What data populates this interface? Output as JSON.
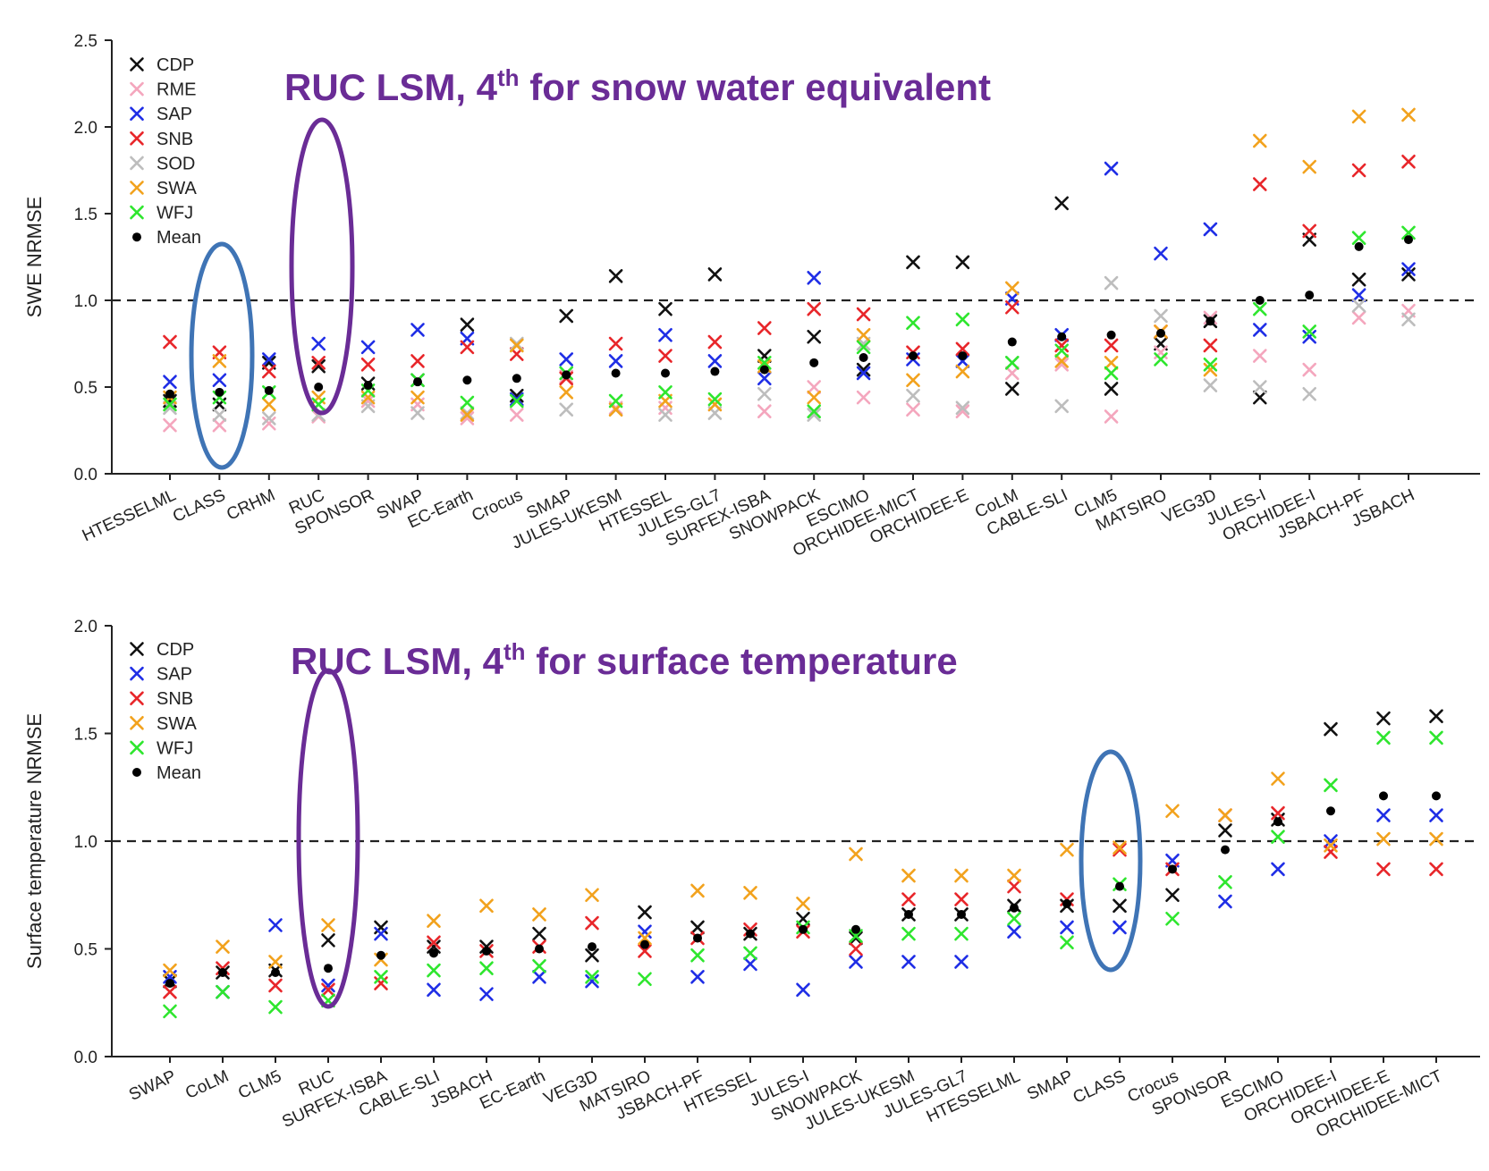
{
  "colors": {
    "CDP": "#111111",
    "RME": "#f4a6bd",
    "SAP": "#1f2ee6",
    "SNB": "#e8262a",
    "SOD": "#bdbdbd",
    "SWA": "#f2a21d",
    "WFJ": "#2ee62e",
    "Mean": "#000000",
    "annotation": "#6a2c96",
    "ruc_ellipse": "#6a2c96",
    "class_ellipse": "#3f74b5"
  },
  "chart_data": [
    {
      "type": "scatter",
      "ylabel": "SWE NRMSE",
      "ylim": [
        0,
        2.5
      ],
      "yticks": [
        "0.0",
        "0.5",
        "1.0",
        "1.5",
        "2.0",
        "2.5"
      ],
      "reference_line": 1.0,
      "annotation": {
        "pre": "RUC LSM, 4",
        "sup": "th",
        "post": " for snow water equivalent"
      },
      "legend": [
        "CDP",
        "RME",
        "SAP",
        "SNB",
        "SOD",
        "SWA",
        "WFJ",
        "Mean"
      ],
      "legend_position": "top-left",
      "highlight": {
        "ruc": "RUC",
        "class": "CLASS"
      },
      "categories": [
        "HTESSELML",
        "CLASS",
        "CRHM",
        "RUC",
        "SPONSOR",
        "SWAP",
        "EC-Earth",
        "Crocus",
        "SMAP",
        "JULES-UKESM",
        "HTESSEL",
        "JULES-GL7",
        "SURFEX-ISBA",
        "SNOWPACK",
        "ESCIMO",
        "ORCHIDEE-MICT",
        "ORCHIDEE-E",
        "CoLM",
        "CABLE-SLI",
        "CLM5",
        "MATSIRO",
        "VEG3D",
        "JULES-I",
        "ORCHIDEE-I",
        "JSBACH-PF",
        "JSBACH"
      ],
      "series": [
        {
          "name": "CDP",
          "values": [
            0.42,
            0.4,
            0.64,
            0.62,
            0.52,
            0.54,
            0.86,
            0.45,
            0.91,
            1.14,
            0.95,
            1.15,
            0.68,
            0.79,
            0.6,
            1.22,
            1.22,
            0.49,
            1.56,
            0.49,
            0.75,
            0.88,
            0.44,
            1.35,
            1.12,
            1.15
          ]
        },
        {
          "name": "RME",
          "values": [
            0.28,
            0.28,
            0.29,
            0.33,
            0.42,
            0.4,
            0.32,
            0.34,
            0.56,
            0.38,
            0.38,
            0.4,
            0.36,
            0.5,
            0.44,
            0.37,
            0.36,
            0.58,
            0.63,
            0.33,
            0.7,
            0.9,
            0.68,
            0.6,
            0.9,
            0.94
          ]
        },
        {
          "name": "SAP",
          "values": [
            0.53,
            0.54,
            0.66,
            0.75,
            0.73,
            0.83,
            0.78,
            0.43,
            0.66,
            0.65,
            0.8,
            0.65,
            0.55,
            1.13,
            0.58,
            0.66,
            0.65,
            1.01,
            0.8,
            1.76,
            1.27,
            1.41,
            0.83,
            0.79,
            1.03,
            1.18
          ]
        },
        {
          "name": "SNB",
          "values": [
            0.76,
            0.7,
            0.59,
            0.64,
            0.63,
            0.65,
            0.73,
            0.69,
            0.55,
            0.75,
            0.68,
            0.76,
            0.84,
            0.95,
            0.92,
            0.7,
            0.72,
            0.96,
            0.74,
            0.74,
            0.82,
            0.74,
            1.67,
            1.4,
            1.75,
            1.8
          ]
        },
        {
          "name": "SOD",
          "values": [
            0.38,
            0.34,
            0.32,
            0.34,
            0.39,
            0.35,
            0.35,
            0.75,
            0.37,
            0.37,
            0.34,
            0.35,
            0.46,
            0.34,
            0.75,
            0.45,
            0.38,
            0.64,
            0.39,
            1.1,
            0.91,
            0.51,
            0.5,
            0.46,
            0.97,
            0.89
          ]
        },
        {
          "name": "SWA",
          "values": [
            0.44,
            0.65,
            0.4,
            0.44,
            0.44,
            0.44,
            0.34,
            0.74,
            0.47,
            0.37,
            0.42,
            0.4,
            0.62,
            0.44,
            0.8,
            0.54,
            0.59,
            1.07,
            0.65,
            0.64,
            0.82,
            0.6,
            1.92,
            1.77,
            2.06,
            2.07
          ]
        },
        {
          "name": "WFJ",
          "values": [
            0.4,
            0.44,
            0.47,
            0.4,
            0.48,
            0.54,
            0.41,
            0.42,
            0.58,
            0.42,
            0.47,
            0.43,
            0.64,
            0.36,
            0.73,
            0.87,
            0.89,
            0.64,
            0.71,
            0.58,
            0.66,
            0.63,
            0.95,
            0.82,
            1.36,
            1.39
          ]
        },
        {
          "name": "Mean",
          "values": [
            0.46,
            0.47,
            0.48,
            0.5,
            0.51,
            0.53,
            0.54,
            0.55,
            0.57,
            0.58,
            0.58,
            0.59,
            0.6,
            0.64,
            0.67,
            0.68,
            0.68,
            0.76,
            0.79,
            0.8,
            0.81,
            0.88,
            1.0,
            1.03,
            1.31,
            1.35
          ]
        }
      ]
    },
    {
      "type": "scatter",
      "ylabel": "Surface temperature NRMSE",
      "ylim": [
        0,
        2.0
      ],
      "yticks": [
        "0.0",
        "0.5",
        "1.0",
        "1.5",
        "2.0"
      ],
      "reference_line": 1.0,
      "annotation": {
        "pre": "RUC LSM, 4",
        "sup": "th",
        "post": " for surface temperature"
      },
      "legend": [
        "CDP",
        "SAP",
        "SNB",
        "SWA",
        "WFJ",
        "Mean"
      ],
      "legend_position": "top-left",
      "highlight": {
        "ruc": "RUC",
        "class": "CLASS"
      },
      "categories": [
        "SWAP",
        "CoLM",
        "CLM5",
        "RUC",
        "SURFEX-ISBA",
        "CABLE-SLI",
        "JSBACH",
        "EC-Earth",
        "VEG3D",
        "MATSIRO",
        "JSBACH-PF",
        "HTESSEL",
        "JULES-I",
        "SNOWPACK",
        "JULES-UKESM",
        "JULES-GL7",
        "HTESSELML",
        "SMAP",
        "CLASS",
        "Crocus",
        "SPONSOR",
        "ESCIMO",
        "ORCHIDEE-I",
        "ORCHIDEE-E",
        "ORCHIDEE-MICT"
      ],
      "series": [
        {
          "name": "CDP",
          "values": [
            0.35,
            0.39,
            0.4,
            0.54,
            0.6,
            0.51,
            0.51,
            0.57,
            0.47,
            0.67,
            0.6,
            0.57,
            0.64,
            0.55,
            0.66,
            0.66,
            0.7,
            0.7,
            0.7,
            0.75,
            1.05,
            1.1,
            1.52,
            1.57,
            1.58
          ]
        },
        {
          "name": "SAP",
          "values": [
            0.37,
            0.3,
            0.61,
            0.33,
            0.57,
            0.31,
            0.29,
            0.37,
            0.35,
            0.58,
            0.37,
            0.43,
            0.31,
            0.44,
            0.44,
            0.44,
            0.58,
            0.6,
            0.6,
            0.91,
            0.72,
            0.87,
            1.0,
            1.12,
            1.12
          ]
        },
        {
          "name": "SNB",
          "values": [
            0.3,
            0.41,
            0.33,
            0.31,
            0.34,
            0.53,
            0.49,
            0.51,
            0.62,
            0.49,
            0.55,
            0.59,
            0.58,
            0.5,
            0.73,
            0.73,
            0.79,
            0.73,
            0.96,
            0.87,
            1.12,
            1.13,
            0.95,
            0.87,
            0.87
          ]
        },
        {
          "name": "SWA",
          "values": [
            0.4,
            0.51,
            0.44,
            0.61,
            0.45,
            0.63,
            0.7,
            0.66,
            0.75,
            0.55,
            0.77,
            0.76,
            0.71,
            0.94,
            0.84,
            0.84,
            0.84,
            0.96,
            0.97,
            1.14,
            1.12,
            1.29,
            0.98,
            1.01,
            1.01
          ]
        },
        {
          "name": "WFJ",
          "values": [
            0.21,
            0.3,
            0.23,
            0.26,
            0.37,
            0.4,
            0.41,
            0.42,
            0.37,
            0.36,
            0.47,
            0.48,
            0.6,
            0.56,
            0.57,
            0.57,
            0.64,
            0.53,
            0.8,
            0.64,
            0.81,
            1.02,
            1.26,
            1.48,
            1.48
          ]
        },
        {
          "name": "Mean",
          "values": [
            0.34,
            0.39,
            0.39,
            0.41,
            0.47,
            0.48,
            0.49,
            0.5,
            0.51,
            0.52,
            0.55,
            0.57,
            0.59,
            0.59,
            0.66,
            0.66,
            0.69,
            0.71,
            0.79,
            0.87,
            0.96,
            1.09,
            1.14,
            1.21,
            1.21
          ]
        }
      ]
    }
  ]
}
